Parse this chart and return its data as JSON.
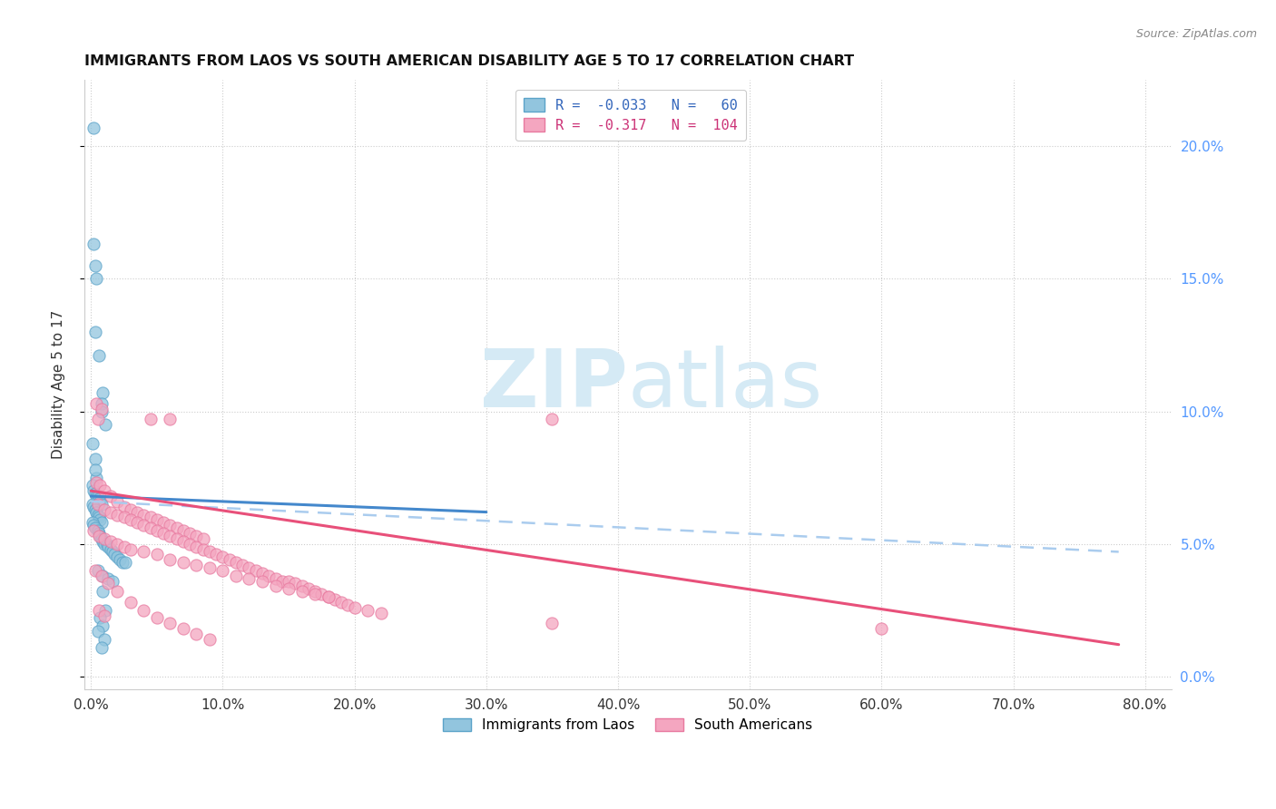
{
  "title": "IMMIGRANTS FROM LAOS VS SOUTH AMERICAN DISABILITY AGE 5 TO 17 CORRELATION CHART",
  "source": "Source: ZipAtlas.com",
  "ylabel": "Disability Age 5 to 17",
  "xlim": [
    -0.005,
    0.82
  ],
  "ylim": [
    -0.005,
    0.225
  ],
  "laos_color": "#92c5de",
  "laos_edge_color": "#5ba3c9",
  "sa_color": "#f4a6c0",
  "sa_edge_color": "#e8799f",
  "laos_trend_color": "#4488cc",
  "sa_trend_color": "#e8507a",
  "laos_dash_color": "#aaccee",
  "watermark_color": "#d5eaf5",
  "laos_trend": [
    0.0,
    0.068,
    0.3,
    0.062
  ],
  "sa_trend": [
    0.0,
    0.07,
    0.78,
    0.012
  ],
  "laos_dash": [
    0.0,
    0.066,
    0.78,
    0.047
  ],
  "laos_scatter": [
    [
      0.002,
      0.207
    ],
    [
      0.002,
      0.163
    ],
    [
      0.003,
      0.155
    ],
    [
      0.004,
      0.15
    ],
    [
      0.003,
      0.13
    ],
    [
      0.006,
      0.121
    ],
    [
      0.009,
      0.107
    ],
    [
      0.008,
      0.103
    ],
    [
      0.008,
      0.1
    ],
    [
      0.011,
      0.095
    ],
    [
      0.001,
      0.088
    ],
    [
      0.003,
      0.082
    ],
    [
      0.004,
      0.075
    ],
    [
      0.003,
      0.078
    ],
    [
      0.001,
      0.072
    ],
    [
      0.002,
      0.07
    ],
    [
      0.003,
      0.069
    ],
    [
      0.004,
      0.068
    ],
    [
      0.005,
      0.068
    ],
    [
      0.006,
      0.067
    ],
    [
      0.007,
      0.066
    ],
    [
      0.008,
      0.065
    ],
    [
      0.001,
      0.065
    ],
    [
      0.002,
      0.064
    ],
    [
      0.003,
      0.063
    ],
    [
      0.004,
      0.062
    ],
    [
      0.005,
      0.061
    ],
    [
      0.006,
      0.06
    ],
    [
      0.007,
      0.059
    ],
    [
      0.008,
      0.058
    ],
    [
      0.001,
      0.058
    ],
    [
      0.002,
      0.057
    ],
    [
      0.003,
      0.056
    ],
    [
      0.005,
      0.055
    ],
    [
      0.006,
      0.054
    ],
    [
      0.007,
      0.053
    ],
    [
      0.008,
      0.052
    ],
    [
      0.009,
      0.051
    ],
    [
      0.01,
      0.05
    ],
    [
      0.012,
      0.05
    ],
    [
      0.013,
      0.049
    ],
    [
      0.015,
      0.048
    ],
    [
      0.016,
      0.047
    ],
    [
      0.018,
      0.046
    ],
    [
      0.02,
      0.045
    ],
    [
      0.022,
      0.044
    ],
    [
      0.024,
      0.043
    ],
    [
      0.026,
      0.043
    ],
    [
      0.005,
      0.04
    ],
    [
      0.009,
      0.038
    ],
    [
      0.013,
      0.037
    ],
    [
      0.016,
      0.036
    ],
    [
      0.009,
      0.032
    ],
    [
      0.011,
      0.025
    ],
    [
      0.007,
      0.022
    ],
    [
      0.009,
      0.019
    ],
    [
      0.005,
      0.017
    ],
    [
      0.01,
      0.014
    ],
    [
      0.008,
      0.011
    ]
  ],
  "sa_scatter": [
    [
      0.004,
      0.103
    ],
    [
      0.008,
      0.101
    ],
    [
      0.005,
      0.097
    ],
    [
      0.045,
      0.097
    ],
    [
      0.06,
      0.097
    ],
    [
      0.004,
      0.073
    ],
    [
      0.007,
      0.072
    ],
    [
      0.01,
      0.07
    ],
    [
      0.35,
      0.097
    ],
    [
      0.015,
      0.068
    ],
    [
      0.02,
      0.066
    ],
    [
      0.025,
      0.064
    ],
    [
      0.03,
      0.063
    ],
    [
      0.035,
      0.062
    ],
    [
      0.04,
      0.061
    ],
    [
      0.045,
      0.06
    ],
    [
      0.05,
      0.059
    ],
    [
      0.055,
      0.058
    ],
    [
      0.06,
      0.057
    ],
    [
      0.065,
      0.056
    ],
    [
      0.07,
      0.055
    ],
    [
      0.075,
      0.054
    ],
    [
      0.08,
      0.053
    ],
    [
      0.085,
      0.052
    ],
    [
      0.005,
      0.065
    ],
    [
      0.01,
      0.063
    ],
    [
      0.015,
      0.062
    ],
    [
      0.02,
      0.061
    ],
    [
      0.025,
      0.06
    ],
    [
      0.03,
      0.059
    ],
    [
      0.035,
      0.058
    ],
    [
      0.04,
      0.057
    ],
    [
      0.045,
      0.056
    ],
    [
      0.05,
      0.055
    ],
    [
      0.055,
      0.054
    ],
    [
      0.06,
      0.053
    ],
    [
      0.065,
      0.052
    ],
    [
      0.07,
      0.051
    ],
    [
      0.075,
      0.05
    ],
    [
      0.08,
      0.049
    ],
    [
      0.085,
      0.048
    ],
    [
      0.09,
      0.047
    ],
    [
      0.095,
      0.046
    ],
    [
      0.1,
      0.045
    ],
    [
      0.105,
      0.044
    ],
    [
      0.11,
      0.043
    ],
    [
      0.115,
      0.042
    ],
    [
      0.12,
      0.041
    ],
    [
      0.125,
      0.04
    ],
    [
      0.13,
      0.039
    ],
    [
      0.135,
      0.038
    ],
    [
      0.14,
      0.037
    ],
    [
      0.145,
      0.036
    ],
    [
      0.15,
      0.036
    ],
    [
      0.155,
      0.035
    ],
    [
      0.16,
      0.034
    ],
    [
      0.165,
      0.033
    ],
    [
      0.17,
      0.032
    ],
    [
      0.175,
      0.031
    ],
    [
      0.18,
      0.03
    ],
    [
      0.185,
      0.029
    ],
    [
      0.19,
      0.028
    ],
    [
      0.195,
      0.027
    ],
    [
      0.2,
      0.026
    ],
    [
      0.21,
      0.025
    ],
    [
      0.22,
      0.024
    ],
    [
      0.002,
      0.055
    ],
    [
      0.006,
      0.053
    ],
    [
      0.01,
      0.052
    ],
    [
      0.015,
      0.051
    ],
    [
      0.02,
      0.05
    ],
    [
      0.025,
      0.049
    ],
    [
      0.03,
      0.048
    ],
    [
      0.04,
      0.047
    ],
    [
      0.05,
      0.046
    ],
    [
      0.06,
      0.044
    ],
    [
      0.07,
      0.043
    ],
    [
      0.08,
      0.042
    ],
    [
      0.09,
      0.041
    ],
    [
      0.1,
      0.04
    ],
    [
      0.11,
      0.038
    ],
    [
      0.12,
      0.037
    ],
    [
      0.13,
      0.036
    ],
    [
      0.14,
      0.034
    ],
    [
      0.15,
      0.033
    ],
    [
      0.16,
      0.032
    ],
    [
      0.17,
      0.031
    ],
    [
      0.18,
      0.03
    ],
    [
      0.006,
      0.025
    ],
    [
      0.01,
      0.023
    ],
    [
      0.35,
      0.02
    ],
    [
      0.6,
      0.018
    ],
    [
      0.003,
      0.04
    ],
    [
      0.008,
      0.038
    ],
    [
      0.013,
      0.035
    ],
    [
      0.02,
      0.032
    ],
    [
      0.03,
      0.028
    ],
    [
      0.04,
      0.025
    ],
    [
      0.05,
      0.022
    ],
    [
      0.06,
      0.02
    ],
    [
      0.07,
      0.018
    ],
    [
      0.08,
      0.016
    ],
    [
      0.09,
      0.014
    ]
  ]
}
